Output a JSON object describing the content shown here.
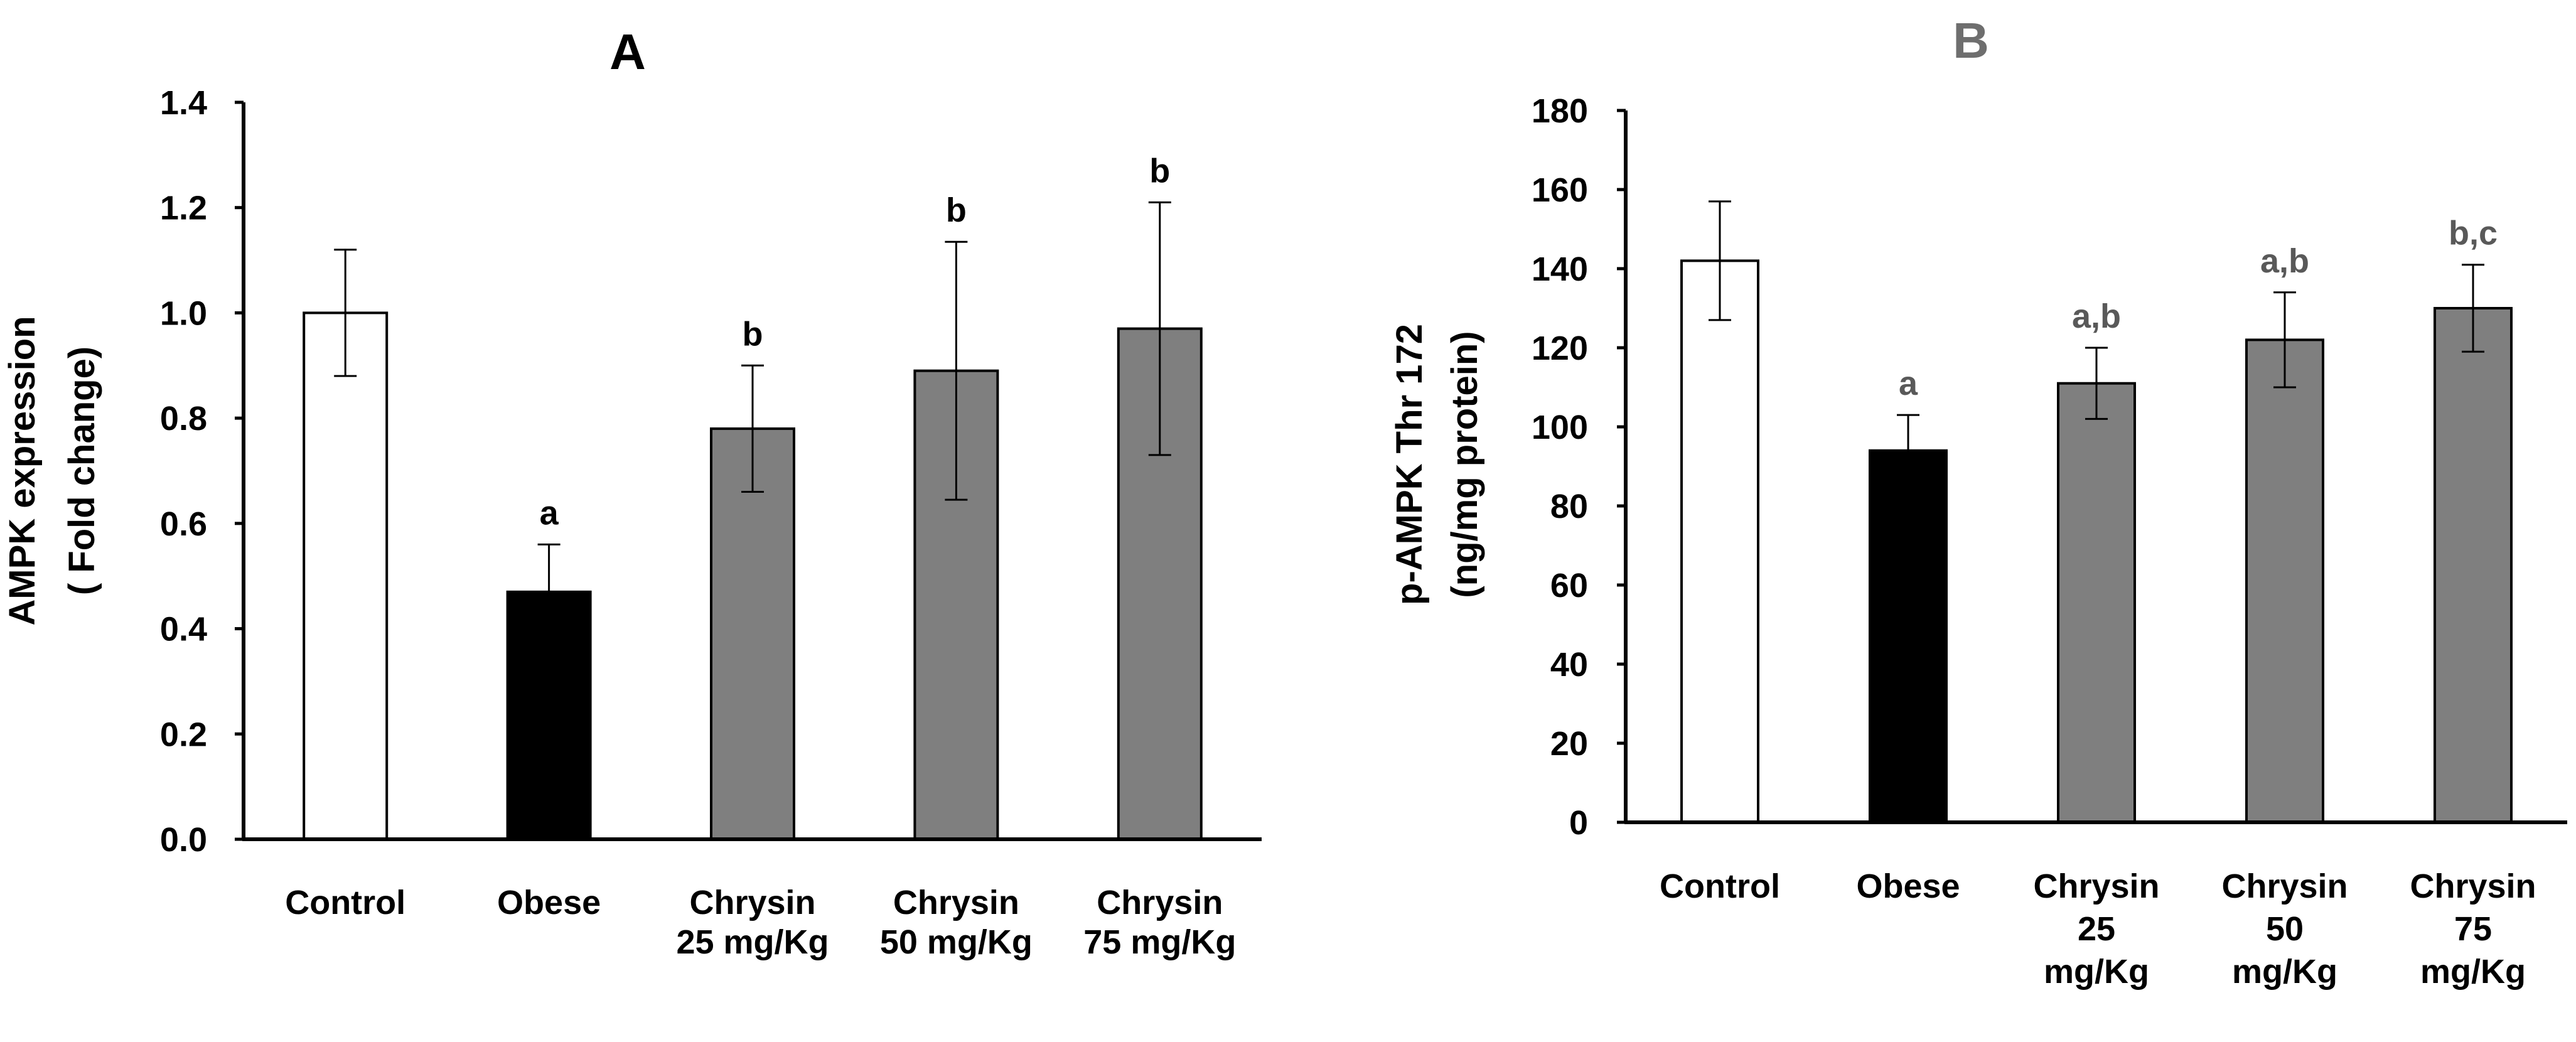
{
  "chart_data": [
    {
      "type": "bar",
      "title": "A",
      "title_color": "#000000",
      "ylabel": [
        "AMPK expression",
        "( Fold change)"
      ],
      "xlabel": "",
      "ylim": [
        0,
        1.4
      ],
      "yticks": [
        "0.0",
        "0.2",
        "0.4",
        "0.6",
        "0.8",
        "1.0",
        "1.2",
        "1.4"
      ],
      "categories": [
        [
          "Control"
        ],
        [
          "Obese"
        ],
        [
          "Chrysin",
          "25 mg/Kg"
        ],
        [
          "Chrysin",
          "50 mg/Kg"
        ],
        [
          "Chrysin",
          "75 mg/Kg"
        ]
      ],
      "values": [
        1.0,
        0.47,
        0.78,
        0.89,
        0.97
      ],
      "errors": [
        0.12,
        0.09,
        0.12,
        0.245,
        0.24
      ],
      "significance": [
        "",
        "a",
        "b",
        "b",
        "b"
      ],
      "significance_color": "#000000",
      "bar_colors": [
        "#ffffff",
        "#000000",
        "#7f7f7f",
        "#7f7f7f",
        "#7f7f7f"
      ]
    },
    {
      "type": "bar",
      "title": "B",
      "title_color": "#6e6e6e",
      "ylabel": [
        "p-AMPK Thr 172",
        "(ng/mg protein)"
      ],
      "xlabel": "",
      "ylim": [
        0,
        180
      ],
      "yticks": [
        "0",
        "20",
        "40",
        "60",
        "80",
        "100",
        "120",
        "140",
        "160",
        "180"
      ],
      "categories": [
        [
          "Control"
        ],
        [
          "Obese"
        ],
        [
          "Chrysin",
          "25",
          "mg/Kg"
        ],
        [
          "Chrysin",
          "50",
          "mg/Kg"
        ],
        [
          "Chrysin",
          "75",
          "mg/Kg"
        ]
      ],
      "values": [
        142,
        94,
        111,
        122,
        130
      ],
      "errors": [
        15,
        9,
        9,
        12,
        11
      ],
      "significance": [
        "",
        "a",
        "a,b",
        "a,b",
        "b,c"
      ],
      "significance_color": "#595959",
      "bar_colors": [
        "#ffffff",
        "#000000",
        "#7f7f7f",
        "#7f7f7f",
        "#7f7f7f"
      ]
    }
  ]
}
